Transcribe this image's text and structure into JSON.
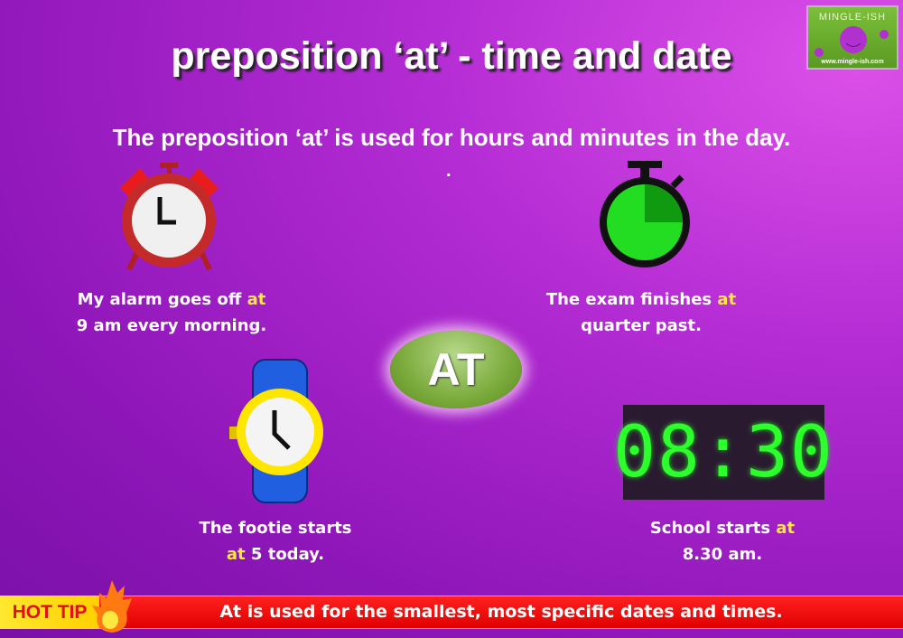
{
  "title": "preposition ‘at’ - time and date",
  "subtitle": "The preposition ‘at’ is used for hours and minutes in the day.",
  "dot": ".",
  "logo": {
    "name": "MINGLE-ISH",
    "url": "www.mingle-ish.com"
  },
  "center_badge": "AT",
  "examples": [
    {
      "line1_pre": "My alarm goes off ",
      "line1_hl": "at",
      "line2": "9 am every morning.",
      "icon": "alarm-clock-icon"
    },
    {
      "line1_pre": "The exam finishes ",
      "line1_hl": "at",
      "line2": "quarter past.",
      "icon": "stopwatch-icon"
    },
    {
      "line1": "The footie starts",
      "line2_hl": "at",
      "line2_post": " 5 today.",
      "icon": "wristwatch-icon"
    },
    {
      "line1_pre": "School starts ",
      "line1_hl": "at",
      "line2": "8.30 am.",
      "icon": "digital-clock-icon",
      "display": "08:30"
    }
  ],
  "hot_tip": {
    "label": "HOT TIP",
    "text": "At is used for the smallest, most specific dates and times.",
    "icon": "fire-icon"
  },
  "colors": {
    "highlight": "#ffe640",
    "tip_bar": "#ff0000",
    "badge": "#7aaa3a",
    "digital": "#2cff2c"
  }
}
